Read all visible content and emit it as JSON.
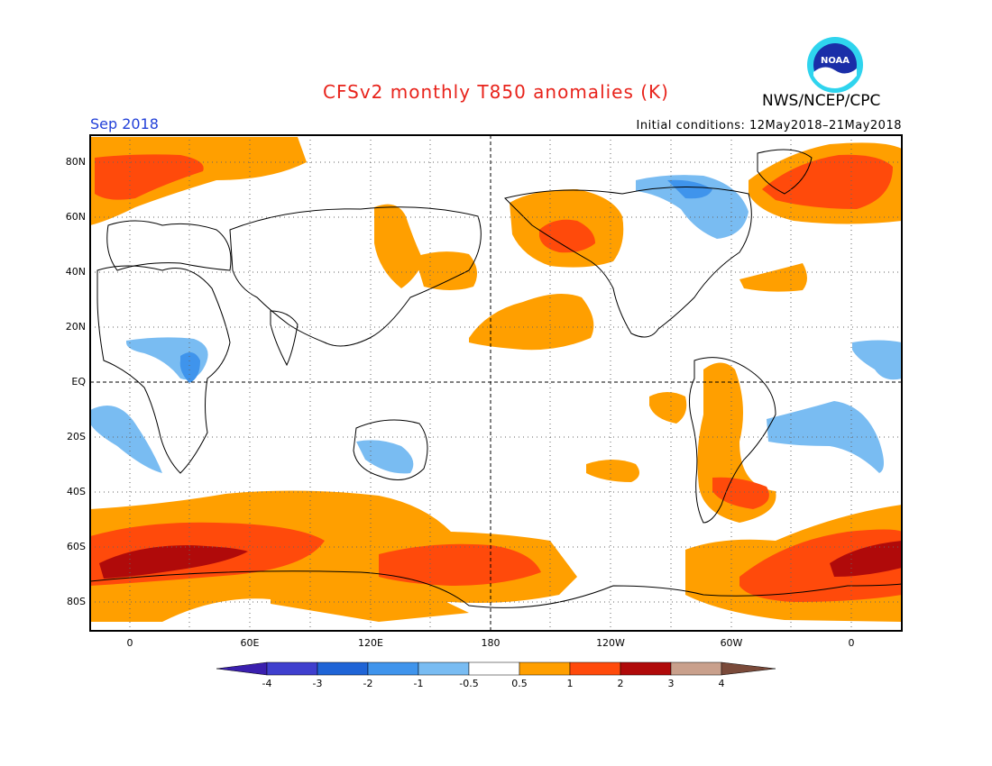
{
  "header": {
    "title": "CFSv2 monthly T850 anomalies (K)",
    "agency": "NWS/NCEP/CPC",
    "month": "Sep 2018",
    "initial_conditions": "Initial conditions: 12May2018–21May2018",
    "logo_text": "NOAA"
  },
  "axes": {
    "lat_labels": [
      "80N",
      "60N",
      "40N",
      "20N",
      "EQ",
      "20S",
      "40S",
      "60S",
      "80S"
    ],
    "lon_labels": [
      "0",
      "60E",
      "120E",
      "180",
      "120W",
      "60W",
      "0"
    ]
  },
  "colorbar": {
    "labels": [
      "-4",
      "-3",
      "-2",
      "-1",
      "-0.5",
      "0.5",
      "1",
      "2",
      "3",
      "4"
    ],
    "colors": [
      "#3a1fae",
      "#3f3fce",
      "#1f64d6",
      "#3f94ec",
      "#79bcf2",
      "#ffffff",
      "#ff9f00",
      "#ff4a0b",
      "#b00a0a",
      "#c9a08c",
      "#7a4a3a"
    ]
  },
  "colors": {
    "warm1": "#ff9f00",
    "warm2": "#ff4a0b",
    "warm3": "#b00a0a",
    "cool1": "#79bcf2",
    "cool2": "#3f94ec"
  }
}
